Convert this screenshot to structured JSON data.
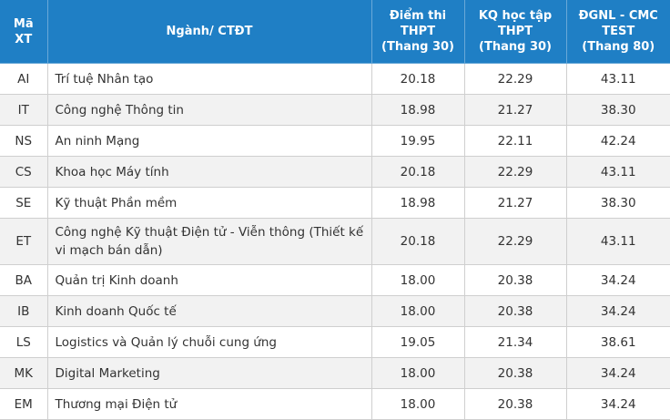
{
  "header": {
    "code": [
      "Mã",
      "XT"
    ],
    "program": "Ngành/ CTĐT",
    "thpt": [
      "Điểm thi",
      "THPT",
      "(Thang 30)"
    ],
    "kq": [
      "KQ học tập",
      "THPT",
      "(Thang 30)"
    ],
    "dgnl": [
      "ĐGNL - CMC",
      "TEST",
      "(Thang 80)"
    ]
  },
  "rows": [
    {
      "code": "AI",
      "name": "Trí tuệ Nhân tạo",
      "thpt": "20.18",
      "kq": "22.29",
      "dgnl": "43.11"
    },
    {
      "code": "IT",
      "name": "Công nghệ Thông tin",
      "thpt": "18.98",
      "kq": "21.27",
      "dgnl": "38.30"
    },
    {
      "code": "NS",
      "name": "An ninh Mạng",
      "thpt": "19.95",
      "kq": "22.11",
      "dgnl": "42.24"
    },
    {
      "code": "CS",
      "name": "Khoa học Máy tính",
      "thpt": "20.18",
      "kq": "22.29",
      "dgnl": "43.11"
    },
    {
      "code": "SE",
      "name": "Kỹ thuật Phần mềm",
      "thpt": "18.98",
      "kq": "21.27",
      "dgnl": "38.30"
    },
    {
      "code": "ET",
      "name": "Công nghệ Kỹ thuật Điện tử - Viễn thông (Thiết kế vi mạch bán dẫn)",
      "thpt": "20.18",
      "kq": "22.29",
      "dgnl": "43.11"
    },
    {
      "code": "BA",
      "name": "Quản trị Kinh doanh",
      "thpt": "18.00",
      "kq": "20.38",
      "dgnl": "34.24"
    },
    {
      "code": "IB",
      "name": "Kinh doanh Quốc tế",
      "thpt": "18.00",
      "kq": "20.38",
      "dgnl": "34.24"
    },
    {
      "code": "LS",
      "name": "Logistics và Quản lý chuỗi cung ứng",
      "thpt": "19.05",
      "kq": "21.34",
      "dgnl": "38.61"
    },
    {
      "code": "MK",
      "name": "Digital Marketing",
      "thpt": "18.00",
      "kq": "20.38",
      "dgnl": "34.24"
    },
    {
      "code": "EM",
      "name": "Thương mại Điện tử",
      "thpt": "18.00",
      "kq": "20.38",
      "dgnl": "34.24"
    }
  ]
}
